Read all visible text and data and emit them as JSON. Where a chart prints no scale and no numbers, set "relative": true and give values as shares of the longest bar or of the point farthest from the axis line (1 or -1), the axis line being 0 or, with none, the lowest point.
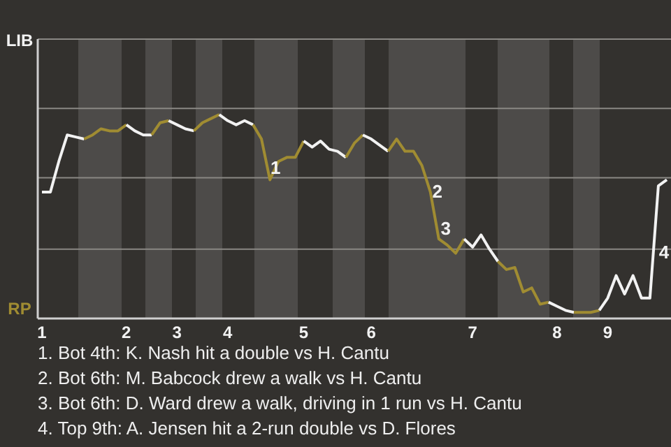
{
  "chart_data": {
    "type": "line",
    "relative": true,
    "categories": [
      "1",
      null,
      null,
      null,
      null,
      null,
      null,
      null,
      null,
      null,
      "2",
      null,
      null,
      null,
      null,
      null,
      "3",
      null,
      null,
      null,
      null,
      null,
      "4",
      null,
      null,
      null,
      null,
      null,
      null,
      null,
      null,
      "5",
      null,
      null,
      null,
      null,
      null,
      null,
      null,
      "6",
      null,
      null,
      null,
      null,
      null,
      null,
      null,
      null,
      null,
      null,
      null,
      "7",
      null,
      null,
      null,
      null,
      null,
      null,
      null,
      null,
      null,
      "8",
      null,
      null,
      null,
      null,
      null,
      "9",
      null,
      null,
      null,
      null,
      null,
      null,
      null
    ],
    "series": [
      {
        "name": "LIB",
        "color": "#f2f2f2",
        "values": [
          0.62,
          0.62,
          0.77,
          0.9,
          0.89,
          0.88,
          null,
          null,
          null,
          null,
          null,
          null,
          null,
          null,
          null,
          null,
          null,
          null,
          null,
          null,
          null,
          null,
          null,
          null,
          null,
          null,
          null,
          null,
          null,
          null,
          null,
          null,
          null,
          null,
          null,
          null,
          null,
          null,
          null,
          null,
          null,
          null,
          null,
          null,
          null,
          null,
          null,
          null,
          null,
          null,
          null,
          null,
          null,
          null,
          null,
          null,
          null,
          null,
          null,
          null,
          null,
          null,
          null,
          null,
          null,
          null,
          null,
          null,
          null,
          null,
          null,
          null,
          null,
          null,
          null
        ]
      },
      {
        "name": "RP",
        "color": "#a08c32",
        "values": [
          null,
          null,
          null,
          null,
          null,
          0.88,
          0.9,
          0.93,
          0.92,
          0.92,
          0.95,
          null,
          null,
          null,
          null,
          null,
          null,
          null,
          null,
          null,
          null,
          null,
          null,
          null,
          null,
          null,
          null,
          null,
          null,
          null,
          null,
          null,
          null,
          null,
          null,
          null,
          null,
          null,
          null,
          null,
          null,
          null,
          null,
          null,
          null,
          null,
          null,
          null,
          null,
          null,
          null,
          null,
          null,
          null,
          null,
          null,
          null,
          null,
          null,
          null,
          null,
          null,
          null,
          null,
          null,
          null,
          null,
          null,
          null,
          null,
          null,
          null,
          null,
          null,
          null
        ]
      },
      {
        "color": "#f2f2f2",
        "values": [
          null,
          null,
          null,
          null,
          null,
          null,
          null,
          null,
          null,
          null,
          0.95,
          0.92,
          0.9,
          0.9,
          null,
          null,
          null,
          null,
          null,
          null,
          null,
          null,
          null,
          null,
          null,
          null,
          null,
          null,
          null,
          null,
          null,
          null,
          null,
          null,
          null,
          null,
          null,
          null,
          null,
          null,
          null,
          null,
          null,
          null,
          null,
          null,
          null,
          null,
          null,
          null,
          null,
          null,
          null,
          null,
          null,
          null,
          null,
          null,
          null,
          null,
          null,
          null,
          null,
          null,
          null,
          null,
          null,
          null,
          null,
          null,
          null,
          null,
          null,
          null,
          null
        ]
      },
      {
        "color": "#a08c32",
        "values": [
          null,
          null,
          null,
          null,
          null,
          null,
          null,
          null,
          null,
          null,
          null,
          null,
          null,
          0.9,
          0.96,
          0.97,
          null,
          null,
          null,
          null,
          null,
          null,
          null,
          null,
          null,
          null,
          null,
          null,
          null,
          null,
          null,
          null,
          null,
          null,
          null,
          null,
          null,
          null,
          null,
          null,
          null,
          null,
          null,
          null,
          null,
          null,
          null,
          null,
          null,
          null,
          null,
          null,
          null,
          null,
          null,
          null,
          null,
          null,
          null,
          null,
          null,
          null,
          null,
          null,
          null,
          null,
          null,
          null,
          null,
          null,
          null,
          null,
          null,
          null,
          null
        ]
      },
      {
        "color": "#f2f2f2",
        "values": [
          null,
          null,
          null,
          null,
          null,
          null,
          null,
          null,
          null,
          null,
          null,
          null,
          null,
          null,
          null,
          0.97,
          0.95,
          0.93,
          0.92,
          null,
          null,
          null,
          null,
          null,
          null,
          null,
          null,
          null,
          null,
          null,
          null,
          null,
          null,
          null,
          null,
          null,
          null,
          null,
          null,
          null,
          null,
          null,
          null,
          null,
          null,
          null,
          null,
          null,
          null,
          null,
          null,
          null,
          null,
          null,
          null,
          null,
          null,
          null,
          null,
          null,
          null,
          null,
          null,
          null,
          null,
          null,
          null,
          null,
          null,
          null,
          null,
          null,
          null,
          null,
          null
        ]
      },
      {
        "color": "#a08c32",
        "values": [
          null,
          null,
          null,
          null,
          null,
          null,
          null,
          null,
          null,
          null,
          null,
          null,
          null,
          null,
          null,
          null,
          null,
          null,
          0.92,
          0.96,
          0.98,
          1,
          null,
          null,
          null,
          null,
          null,
          null,
          null,
          null,
          null,
          null,
          null,
          null,
          null,
          null,
          null,
          null,
          null,
          null,
          null,
          null,
          null,
          null,
          null,
          null,
          null,
          null,
          null,
          null,
          null,
          null,
          null,
          null,
          null,
          null,
          null,
          null,
          null,
          null,
          null,
          null,
          null,
          null,
          null,
          null,
          null,
          null,
          null,
          null,
          null,
          null,
          null,
          null,
          null
        ]
      },
      {
        "color": "#f2f2f2",
        "values": [
          null,
          null,
          null,
          null,
          null,
          null,
          null,
          null,
          null,
          null,
          null,
          null,
          null,
          null,
          null,
          null,
          null,
          null,
          null,
          null,
          null,
          1,
          0.97,
          0.95,
          0.97,
          0.95,
          null,
          null,
          null,
          null,
          null,
          null,
          null,
          null,
          null,
          null,
          null,
          null,
          null,
          null,
          null,
          null,
          null,
          null,
          null,
          null,
          null,
          null,
          null,
          null,
          null,
          null,
          null,
          null,
          null,
          null,
          null,
          null,
          null,
          null,
          null,
          null,
          null,
          null,
          null,
          null,
          null,
          null,
          null,
          null,
          null,
          null,
          null,
          null,
          null
        ]
      },
      {
        "color": "#a08c32",
        "values": [
          null,
          null,
          null,
          null,
          null,
          null,
          null,
          null,
          null,
          null,
          null,
          null,
          null,
          null,
          null,
          null,
          null,
          null,
          null,
          null,
          null,
          null,
          null,
          null,
          null,
          0.95,
          0.88,
          0.68,
          0.77,
          0.79,
          0.79,
          0.87,
          null,
          null,
          null,
          null,
          null,
          null,
          null,
          null,
          null,
          null,
          null,
          null,
          null,
          null,
          null,
          null,
          null,
          null,
          null,
          null,
          null,
          null,
          null,
          null,
          null,
          null,
          null,
          null,
          null,
          null,
          null,
          null,
          null,
          null,
          null,
          null,
          null,
          null,
          null,
          null,
          null,
          null,
          null
        ]
      },
      {
        "color": "#f2f2f2",
        "values": [
          null,
          null,
          null,
          null,
          null,
          null,
          null,
          null,
          null,
          null,
          null,
          null,
          null,
          null,
          null,
          null,
          null,
          null,
          null,
          null,
          null,
          null,
          null,
          null,
          null,
          null,
          null,
          null,
          null,
          null,
          null,
          0.87,
          0.84,
          0.87,
          0.83,
          0.82,
          0.79,
          null,
          null,
          null,
          null,
          null,
          null,
          null,
          null,
          null,
          null,
          null,
          null,
          null,
          null,
          null,
          null,
          null,
          null,
          null,
          null,
          null,
          null,
          null,
          null,
          null,
          null,
          null,
          null,
          null,
          null,
          null,
          null,
          null,
          null,
          null,
          null,
          null,
          null
        ]
      },
      {
        "color": "#a08c32",
        "values": [
          null,
          null,
          null,
          null,
          null,
          null,
          null,
          null,
          null,
          null,
          null,
          null,
          null,
          null,
          null,
          null,
          null,
          null,
          null,
          null,
          null,
          null,
          null,
          null,
          null,
          null,
          null,
          null,
          null,
          null,
          null,
          null,
          null,
          null,
          null,
          null,
          0.79,
          0.86,
          0.9,
          null,
          null,
          null,
          null,
          null,
          null,
          null,
          null,
          null,
          null,
          null,
          null,
          null,
          null,
          null,
          null,
          null,
          null,
          null,
          null,
          null,
          null,
          null,
          null,
          null,
          null,
          null,
          null,
          null,
          null,
          null,
          null,
          null,
          null,
          null,
          null
        ]
      },
      {
        "color": "#f2f2f2",
        "values": [
          null,
          null,
          null,
          null,
          null,
          null,
          null,
          null,
          null,
          null,
          null,
          null,
          null,
          null,
          null,
          null,
          null,
          null,
          null,
          null,
          null,
          null,
          null,
          null,
          null,
          null,
          null,
          null,
          null,
          null,
          null,
          null,
          null,
          null,
          null,
          null,
          null,
          null,
          0.9,
          0.88,
          0.85,
          0.82,
          null,
          null,
          null,
          null,
          null,
          null,
          null,
          null,
          null,
          null,
          null,
          null,
          null,
          null,
          null,
          null,
          null,
          null,
          null,
          null,
          null,
          null,
          null,
          null,
          null,
          null,
          null,
          null,
          null,
          null,
          null,
          null,
          null
        ]
      },
      {
        "color": "#a08c32",
        "values": [
          null,
          null,
          null,
          null,
          null,
          null,
          null,
          null,
          null,
          null,
          null,
          null,
          null,
          null,
          null,
          null,
          null,
          null,
          null,
          null,
          null,
          null,
          null,
          null,
          null,
          null,
          null,
          null,
          null,
          null,
          null,
          null,
          null,
          null,
          null,
          null,
          null,
          null,
          null,
          null,
          null,
          0.82,
          0.88,
          0.82,
          0.82,
          0.75,
          0.62,
          0.39,
          0.36,
          0.32,
          0.39,
          null,
          null,
          null,
          null,
          null,
          null,
          null,
          null,
          null,
          null,
          null,
          null,
          null,
          null,
          null,
          null,
          null,
          null,
          null,
          null,
          null,
          null,
          null,
          null
        ]
      },
      {
        "color": "#f2f2f2",
        "values": [
          null,
          null,
          null,
          null,
          null,
          null,
          null,
          null,
          null,
          null,
          null,
          null,
          null,
          null,
          null,
          null,
          null,
          null,
          null,
          null,
          null,
          null,
          null,
          null,
          null,
          null,
          null,
          null,
          null,
          null,
          null,
          null,
          null,
          null,
          null,
          null,
          null,
          null,
          null,
          null,
          null,
          null,
          null,
          null,
          null,
          null,
          null,
          null,
          null,
          null,
          0.39,
          0.35,
          0.41,
          0.34,
          0.28,
          null,
          null,
          null,
          null,
          null,
          null,
          null,
          null,
          null,
          null,
          null,
          null,
          null,
          null,
          null,
          null,
          null,
          null,
          null,
          null
        ]
      },
      {
        "color": "#a08c32",
        "values": [
          null,
          null,
          null,
          null,
          null,
          null,
          null,
          null,
          null,
          null,
          null,
          null,
          null,
          null,
          null,
          null,
          null,
          null,
          null,
          null,
          null,
          null,
          null,
          null,
          null,
          null,
          null,
          null,
          null,
          null,
          null,
          null,
          null,
          null,
          null,
          null,
          null,
          null,
          null,
          null,
          null,
          null,
          null,
          null,
          null,
          null,
          null,
          null,
          null,
          null,
          null,
          null,
          null,
          null,
          0.28,
          0.24,
          0.25,
          0.13,
          0.15,
          0.07,
          0.08,
          null,
          null,
          null,
          null,
          null,
          null,
          null,
          null,
          null,
          null,
          null,
          null,
          null,
          null
        ]
      },
      {
        "color": "#f2f2f2",
        "values": [
          null,
          null,
          null,
          null,
          null,
          null,
          null,
          null,
          null,
          null,
          null,
          null,
          null,
          null,
          null,
          null,
          null,
          null,
          null,
          null,
          null,
          null,
          null,
          null,
          null,
          null,
          null,
          null,
          null,
          null,
          null,
          null,
          null,
          null,
          null,
          null,
          null,
          null,
          null,
          null,
          null,
          null,
          null,
          null,
          null,
          null,
          null,
          null,
          null,
          null,
          null,
          null,
          null,
          null,
          null,
          null,
          null,
          null,
          null,
          null,
          0.08,
          0.06,
          0.04,
          0.03,
          null,
          null,
          null,
          null,
          null,
          null,
          null,
          null,
          null,
          null,
          null
        ]
      },
      {
        "color": "#a08c32",
        "values": [
          null,
          null,
          null,
          null,
          null,
          null,
          null,
          null,
          null,
          null,
          null,
          null,
          null,
          null,
          null,
          null,
          null,
          null,
          null,
          null,
          null,
          null,
          null,
          null,
          null,
          null,
          null,
          null,
          null,
          null,
          null,
          null,
          null,
          null,
          null,
          null,
          null,
          null,
          null,
          null,
          null,
          null,
          null,
          null,
          null,
          null,
          null,
          null,
          null,
          null,
          null,
          null,
          null,
          null,
          null,
          null,
          null,
          null,
          null,
          null,
          null,
          null,
          null,
          0.03,
          0.03,
          0.03,
          0.04,
          null,
          null,
          null,
          null,
          null,
          null,
          null,
          null
        ]
      },
      {
        "color": "#f2f2f2",
        "values": [
          null,
          null,
          null,
          null,
          null,
          null,
          null,
          null,
          null,
          null,
          null,
          null,
          null,
          null,
          null,
          null,
          null,
          null,
          null,
          null,
          null,
          null,
          null,
          null,
          null,
          null,
          null,
          null,
          null,
          null,
          null,
          null,
          null,
          null,
          null,
          null,
          null,
          null,
          null,
          null,
          null,
          null,
          null,
          null,
          null,
          null,
          null,
          null,
          null,
          null,
          null,
          null,
          null,
          null,
          null,
          null,
          null,
          null,
          null,
          null,
          null,
          null,
          null,
          null,
          null,
          null,
          0.04,
          0.1,
          0.21,
          0.12,
          0.21,
          0.1,
          0.1,
          0.65,
          0.68
        ]
      }
    ],
    "ref_lines": [
      {
        "axis": "y",
        "value": 0.34,
        "color": "#8a8884"
      },
      {
        "axis": "y",
        "value": 0.69,
        "color": "#8a8884"
      },
      {
        "axis": "y",
        "value": 1.03,
        "color": "#8a8884"
      },
      {
        "axis": "y",
        "value": 1.37,
        "color": "#8a8884"
      }
    ],
    "annotations": [
      "1",
      "2",
      "3",
      "4",
      "1. Bot 4th: K. Nash hit a double vs H. Cantu",
      "2. Bot 6th: M. Babcock drew a walk vs H. Cantu",
      "3. Bot 6th: D. Ward drew a walk, driving in 1 run vs H. Cantu",
      "4. Top 9th: A. Jensen hit a 2-run double vs D. Flores"
    ]
  }
}
